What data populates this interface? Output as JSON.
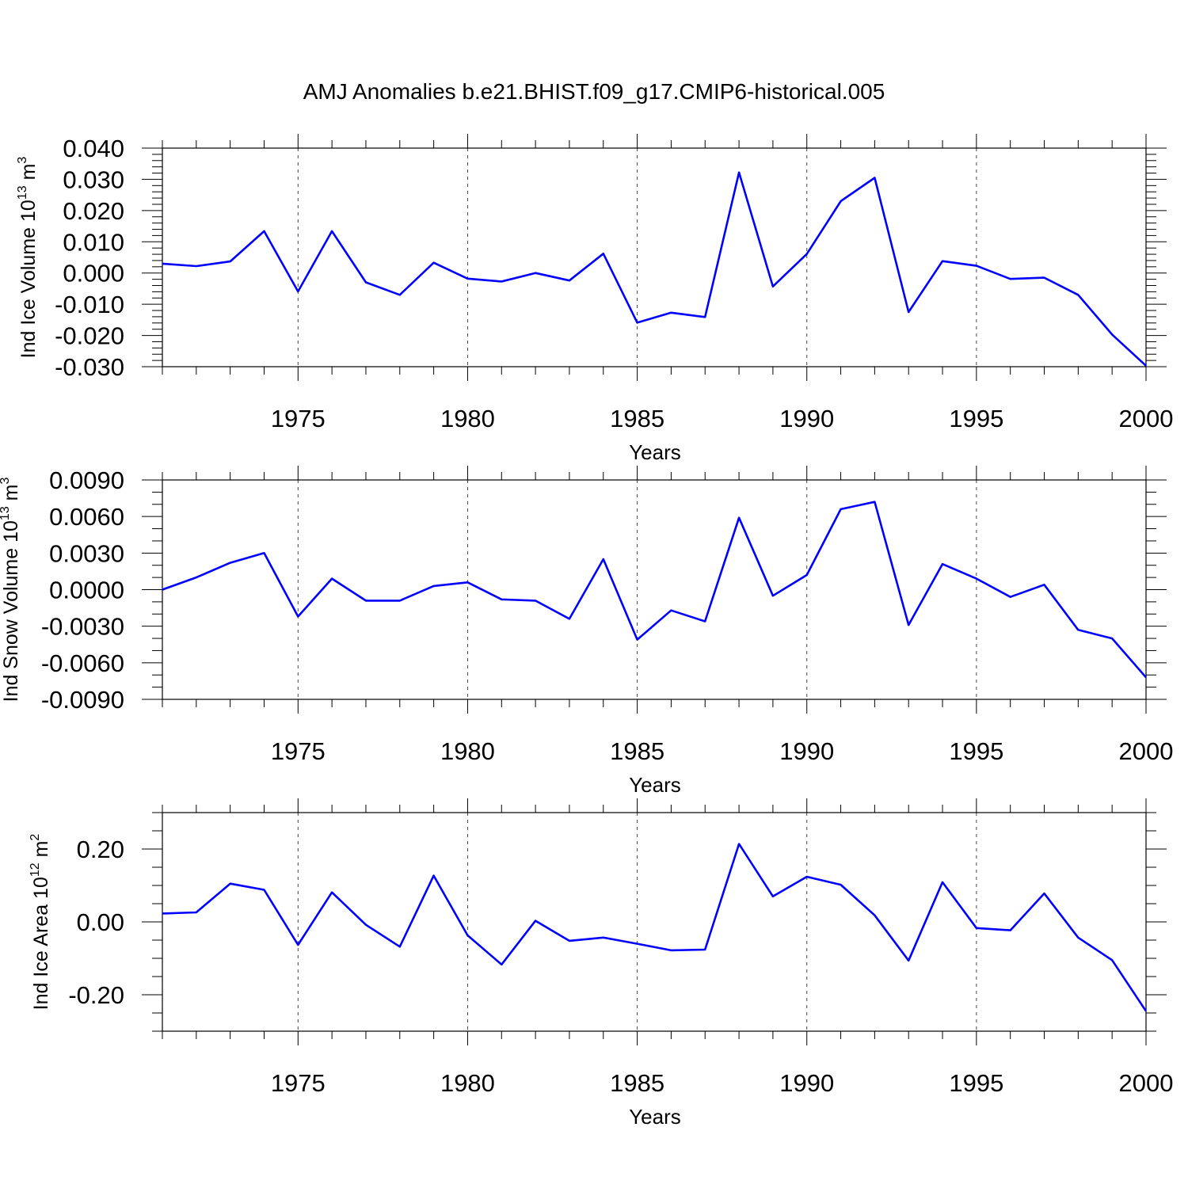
{
  "figure_title": "AMJ Anomalies b.e21.BHIST.f09_g17.CMIP6-historical.005",
  "colors": {
    "line": "#0000ff",
    "axis": "#000000",
    "grid": "#444444"
  },
  "chart_data": [
    {
      "type": "line",
      "title": "AMJ Anomalies b.e21.BHIST.f09_g17.CMIP6-historical.005",
      "xlabel": "Years",
      "ylabel": "Ind Ice Volume 10",
      "ylabel_exp": "13",
      "ylabel_unit": " m",
      "ylabel_unit_exp": "3",
      "xlim": [
        1971,
        2000
      ],
      "ylim": [
        -0.03,
        0.04
      ],
      "xticks": [
        1975,
        1980,
        1985,
        1990,
        1995,
        2000
      ],
      "xtick_labels": [
        "1975",
        "1980",
        "1985",
        "1990",
        "1995",
        "2000"
      ],
      "yticks": [
        -0.03,
        -0.02,
        -0.01,
        0.0,
        0.01,
        0.02,
        0.03,
        0.04
      ],
      "ytick_labels": [
        "-0.030",
        "-0.020",
        "-0.010",
        "0.000",
        "0.010",
        "0.020",
        "0.030",
        "0.040"
      ],
      "grid": "vertical dashed at major x ticks",
      "series": [
        {
          "name": "Ind Ice Volume",
          "x": [
            1971,
            1972,
            1973,
            1974,
            1975,
            1976,
            1977,
            1978,
            1979,
            1980,
            1981,
            1982,
            1983,
            1984,
            1985,
            1986,
            1987,
            1988,
            1989,
            1990,
            1991,
            1992,
            1993,
            1994,
            1995,
            1996,
            1997,
            1998,
            1999,
            2000
          ],
          "values": [
            0.003,
            0.0022,
            0.0037,
            0.0134,
            -0.0059,
            0.0134,
            -0.003,
            -0.007,
            0.0033,
            -0.0018,
            -0.0027,
            0.0,
            -0.0024,
            0.0062,
            -0.0159,
            -0.0127,
            -0.0141,
            0.0322,
            -0.0043,
            0.0061,
            0.023,
            0.0305,
            -0.0125,
            0.0038,
            0.0023,
            -0.0019,
            -0.0015,
            -0.007,
            -0.0197,
            -0.0297
          ]
        }
      ]
    },
    {
      "type": "line",
      "xlabel": "Years",
      "ylabel": "Ind Snow Volume 10",
      "ylabel_exp": "13",
      "ylabel_unit": " m",
      "ylabel_unit_exp": "3",
      "xlim": [
        1971,
        2000
      ],
      "ylim": [
        -0.009,
        0.009
      ],
      "xticks": [
        1975,
        1980,
        1985,
        1990,
        1995,
        2000
      ],
      "xtick_labels": [
        "1975",
        "1980",
        "1985",
        "1990",
        "1995",
        "2000"
      ],
      "yticks": [
        -0.009,
        -0.006,
        -0.003,
        0.0,
        0.003,
        0.006,
        0.009
      ],
      "ytick_labels": [
        "-0.0090",
        "-0.0060",
        "-0.0030",
        "0.0000",
        "0.0030",
        "0.0060",
        "0.0090"
      ],
      "grid": "vertical dashed at major x ticks",
      "series": [
        {
          "name": "Ind Snow Volume",
          "x": [
            1971,
            1972,
            1973,
            1974,
            1975,
            1976,
            1977,
            1978,
            1979,
            1980,
            1981,
            1982,
            1983,
            1984,
            1985,
            1986,
            1987,
            1988,
            1989,
            1990,
            1991,
            1992,
            1993,
            1994,
            1995,
            1996,
            1997,
            1998,
            1999,
            2000
          ],
          "values": [
            0.0,
            0.001,
            0.0022,
            0.003,
            -0.0022,
            0.0009,
            -0.0009,
            -0.0009,
            0.0003,
            0.0006,
            -0.0008,
            -0.0009,
            -0.0024,
            0.0025,
            -0.0041,
            -0.0017,
            -0.0026,
            0.0059,
            -0.0005,
            0.0012,
            0.0066,
            0.0072,
            -0.0029,
            0.0021,
            0.0009,
            -0.0006,
            0.0004,
            -0.0033,
            -0.004,
            -0.0072
          ]
        }
      ]
    },
    {
      "type": "line",
      "xlabel": "Years",
      "ylabel": "Ind Ice Area 10",
      "ylabel_exp": "12",
      "ylabel_unit": " m",
      "ylabel_unit_exp": "2",
      "xlim": [
        1971,
        2000
      ],
      "ylim": [
        -0.3,
        0.3
      ],
      "xticks": [
        1975,
        1980,
        1985,
        1990,
        1995,
        2000
      ],
      "xtick_labels": [
        "1975",
        "1980",
        "1985",
        "1990",
        "1995",
        "2000"
      ],
      "yticks": [
        -0.2,
        0.0,
        0.2
      ],
      "ytick_labels": [
        "-0.20",
        "0.00",
        "0.20"
      ],
      "grid": "vertical dashed at major x ticks",
      "series": [
        {
          "name": "Ind Ice Area",
          "x": [
            1971,
            1972,
            1973,
            1974,
            1975,
            1976,
            1977,
            1978,
            1979,
            1980,
            1981,
            1982,
            1983,
            1984,
            1985,
            1986,
            1987,
            1988,
            1989,
            1990,
            1991,
            1992,
            1993,
            1994,
            1995,
            1996,
            1997,
            1998,
            1999,
            2000
          ],
          "values": [
            0.023,
            0.026,
            0.105,
            0.088,
            -0.063,
            0.081,
            -0.008,
            -0.068,
            0.127,
            -0.037,
            -0.117,
            0.003,
            -0.052,
            -0.043,
            -0.06,
            -0.078,
            -0.076,
            0.214,
            0.07,
            0.124,
            0.102,
            0.018,
            -0.106,
            0.109,
            -0.017,
            -0.023,
            0.078,
            -0.043,
            -0.105,
            -0.245
          ]
        }
      ]
    }
  ]
}
